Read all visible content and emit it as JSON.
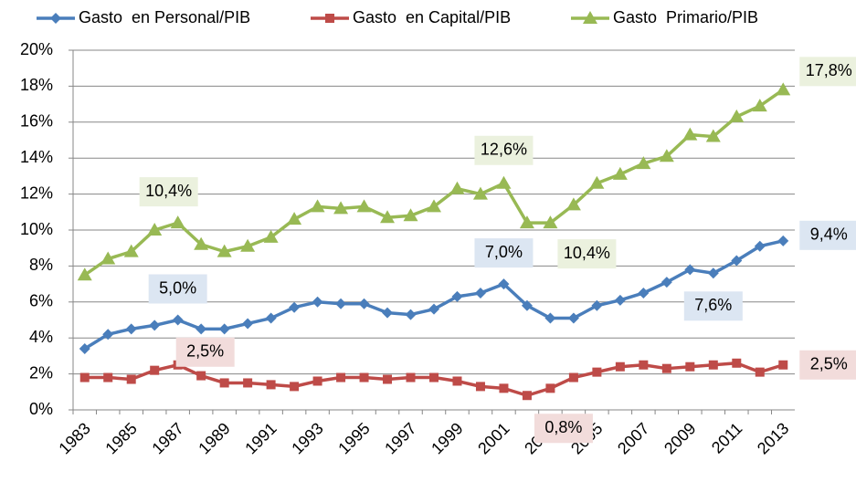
{
  "chart_data": {
    "type": "line",
    "categories": [
      "1983",
      null,
      "1985",
      null,
      "1987",
      null,
      "1989",
      null,
      "1991",
      null,
      "1993",
      null,
      "1995",
      null,
      "1997",
      null,
      "1999",
      null,
      "2001",
      null,
      "2003",
      null,
      "2005",
      null,
      "2007",
      null,
      "2009",
      null,
      "2011",
      null,
      "2013"
    ],
    "series": [
      {
        "name": "Gasto  en Personal/PIB",
        "color": "#4a7ebb",
        "marker": "diamond",
        "values": [
          3.4,
          4.2,
          4.5,
          4.7,
          5.0,
          4.5,
          4.5,
          4.8,
          5.1,
          5.7,
          6.0,
          5.9,
          5.9,
          5.4,
          5.3,
          5.6,
          6.3,
          6.5,
          7.0,
          5.8,
          5.1,
          5.1,
          5.8,
          6.1,
          6.5,
          7.1,
          7.8,
          7.6,
          8.3,
          9.1,
          9.4
        ],
        "value_labels": [
          null,
          null,
          null,
          null,
          "5,0%",
          null,
          null,
          null,
          null,
          null,
          null,
          null,
          null,
          null,
          null,
          null,
          null,
          null,
          "7,0%",
          null,
          null,
          null,
          null,
          null,
          null,
          null,
          null,
          "7,6%",
          null,
          null,
          "9,4%"
        ]
      },
      {
        "name": "Gasto  en Capital/PIB",
        "color": "#be4b48",
        "marker": "square",
        "values": [
          1.8,
          1.8,
          1.7,
          2.2,
          2.5,
          1.9,
          1.5,
          1.5,
          1.4,
          1.3,
          1.6,
          1.8,
          1.8,
          1.7,
          1.8,
          1.8,
          1.6,
          1.3,
          1.2,
          0.8,
          1.2,
          1.8,
          2.1,
          2.4,
          2.5,
          2.3,
          2.4,
          2.5,
          2.6,
          2.1,
          2.5
        ],
        "value_labels": [
          null,
          null,
          null,
          null,
          "2,5%",
          null,
          null,
          null,
          null,
          null,
          null,
          null,
          null,
          null,
          null,
          null,
          null,
          null,
          null,
          "0,8%",
          null,
          null,
          null,
          null,
          null,
          null,
          null,
          null,
          null,
          null,
          "2,5%"
        ]
      },
      {
        "name": "Gasto  Primario/PIB",
        "color": "#98b954",
        "marker": "triangle",
        "values": [
          7.5,
          8.4,
          8.8,
          10.0,
          10.4,
          9.2,
          8.8,
          9.1,
          9.6,
          10.6,
          11.3,
          11.2,
          11.3,
          10.7,
          10.8,
          11.3,
          12.3,
          12.0,
          12.6,
          10.4,
          10.4,
          11.4,
          12.6,
          13.1,
          13.7,
          14.1,
          15.3,
          15.2,
          16.3,
          16.9,
          17.8
        ],
        "value_labels": [
          null,
          null,
          null,
          null,
          "10,4%",
          null,
          null,
          null,
          null,
          null,
          null,
          null,
          null,
          null,
          null,
          null,
          null,
          null,
          "12,6%",
          null,
          "10,4%",
          null,
          null,
          null,
          null,
          null,
          null,
          null,
          null,
          null,
          "17,8%"
        ]
      }
    ],
    "ylim": [
      0,
      20
    ],
    "yticks": [
      {
        "value": 0,
        "label": "0%"
      },
      {
        "value": 2,
        "label": "2%"
      },
      {
        "value": 4,
        "label": "4%"
      },
      {
        "value": 6,
        "label": "6%"
      },
      {
        "value": 8,
        "label": "8%"
      },
      {
        "value": 10,
        "label": "10%"
      },
      {
        "value": 12,
        "label": "12%"
      },
      {
        "value": 14,
        "label": "14%"
      },
      {
        "value": 16,
        "label": "16%"
      },
      {
        "value": 18,
        "label": "18%"
      },
      {
        "value": 20,
        "label": "20%"
      }
    ],
    "grid": true,
    "legend": "top"
  }
}
